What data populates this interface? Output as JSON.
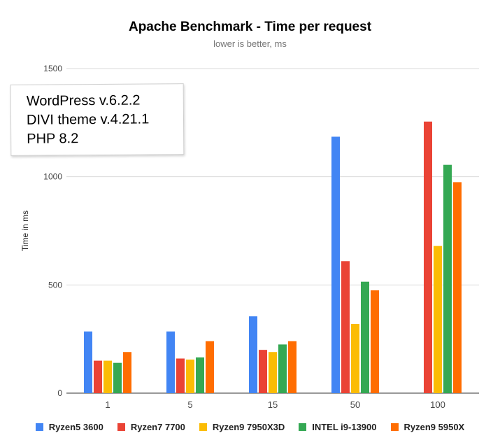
{
  "note": {
    "lines": [
      "WordPress v.6.2.2",
      "DIVI theme v.4.21.1",
      "PHP 8.2"
    ]
  },
  "chart_data": {
    "type": "bar",
    "title": "Apache Benchmark - Time per request",
    "subtitle": "lower is better, ms",
    "xlabel": "",
    "ylabel": "Time in ms",
    "ylim": [
      0,
      1500
    ],
    "yticks": [
      0,
      500,
      1000,
      1500
    ],
    "grid": true,
    "legend_position": "bottom",
    "categories": [
      "1",
      "5",
      "15",
      "50",
      "100"
    ],
    "series": [
      {
        "name": "Ryzen5 3600",
        "color": "#4285f4",
        "values": [
          285,
          285,
          355,
          1185,
          null
        ]
      },
      {
        "name": "Ryzen7 7700",
        "color": "#ea4335",
        "values": [
          150,
          160,
          200,
          610,
          1255
        ]
      },
      {
        "name": "Ryzen9 7950X3D",
        "color": "#fbbc04",
        "values": [
          150,
          155,
          190,
          320,
          680
        ]
      },
      {
        "name": "INTEL i9-13900",
        "color": "#34a853",
        "values": [
          140,
          165,
          225,
          515,
          1055
        ]
      },
      {
        "name": "Ryzen9 5950X",
        "color": "#ff6d01",
        "values": [
          190,
          240,
          240,
          475,
          975
        ]
      }
    ]
  }
}
